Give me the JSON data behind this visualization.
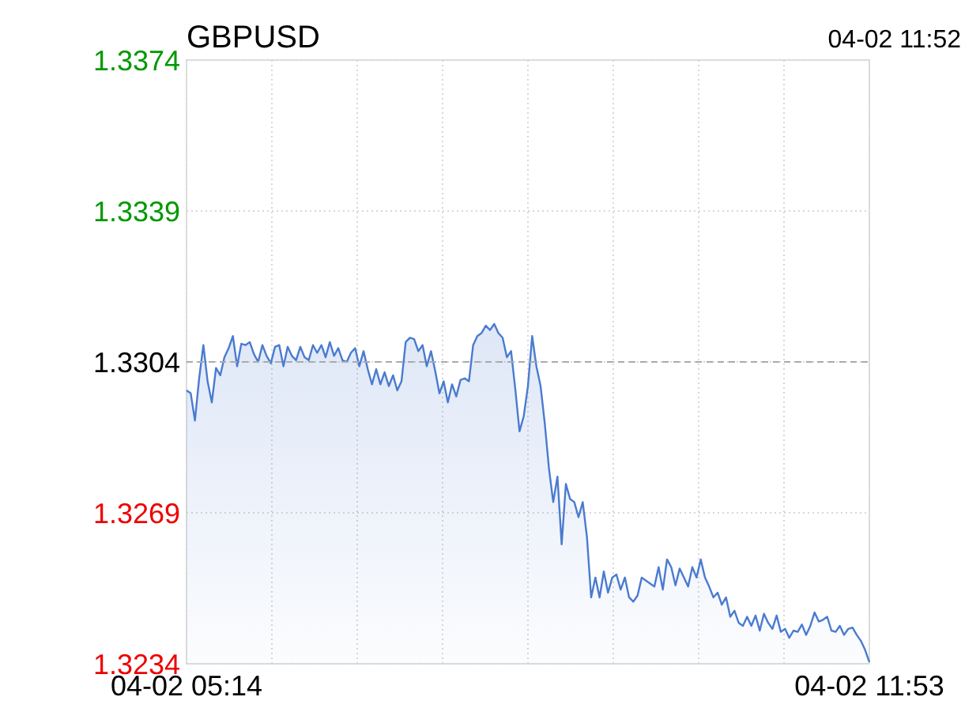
{
  "chart_data": {
    "type": "area",
    "title": "GBPUSD",
    "annotations": [
      "04-02 11:52"
    ],
    "categories": [
      "04-02 05:14",
      null,
      null,
      null,
      null,
      null,
      null,
      null,
      null,
      null,
      null,
      null,
      null,
      null,
      null,
      null,
      null,
      null,
      null,
      null,
      null,
      null,
      null,
      null,
      null,
      null,
      null,
      null,
      null,
      null,
      null,
      null,
      null,
      null,
      null,
      null,
      null,
      null,
      null,
      null,
      null,
      null,
      null,
      null,
      null,
      null,
      null,
      null,
      null,
      null,
      null,
      null,
      null,
      null,
      null,
      null,
      null,
      null,
      null,
      null,
      null,
      null,
      null,
      null,
      null,
      null,
      null,
      null,
      null,
      null,
      null,
      null,
      null,
      null,
      null,
      null,
      null,
      null,
      null,
      null,
      null,
      null,
      null,
      null,
      null,
      null,
      null,
      null,
      null,
      null,
      null,
      null,
      null,
      null,
      null,
      null,
      null,
      null,
      null,
      null,
      null,
      null,
      null,
      null,
      null,
      null,
      null,
      null,
      null,
      null,
      null,
      null,
      null,
      null,
      null,
      null,
      null,
      null,
      null,
      null,
      null,
      null,
      null,
      null,
      null,
      null,
      null,
      null,
      null,
      null,
      null,
      null,
      null,
      null,
      null,
      null,
      null,
      null,
      null,
      null,
      null,
      null,
      null,
      null,
      null,
      null,
      null,
      null,
      null,
      null,
      null,
      null,
      null,
      null,
      null,
      null,
      null,
      null,
      null,
      null,
      null,
      null,
      "04-02 11:53"
    ],
    "ylim": [
      1.3234,
      1.3374
    ],
    "yticks": [
      1.3234,
      1.3269,
      1.3304,
      1.3339,
      1.3374
    ],
    "grid": true,
    "ref_lines": [
      {
        "axis": "y",
        "value": 1.3304,
        "color": "#aaaaaa",
        "line_style": "dashed"
      }
    ],
    "series": [
      {
        "color": "#4a7bd0",
        "values": [
          1.32974,
          1.32967,
          1.32904,
          1.33002,
          1.33079,
          1.32995,
          1.32946,
          1.33026,
          1.33009,
          1.33051,
          1.33072,
          1.331,
          1.3303,
          1.33082,
          1.33079,
          1.33086,
          1.33058,
          1.3304,
          1.33079,
          1.33054,
          1.33037,
          1.33075,
          1.33079,
          1.3303,
          1.33075,
          1.33054,
          1.33044,
          1.33075,
          1.33051,
          1.33044,
          1.33079,
          1.33061,
          1.33079,
          1.33051,
          1.33086,
          1.33054,
          1.33072,
          1.33044,
          1.3304,
          1.33061,
          1.33072,
          1.3303,
          1.33065,
          1.33023,
          1.32988,
          1.33023,
          1.32988,
          1.33016,
          1.32984,
          1.33009,
          1.32974,
          1.32995,
          1.33086,
          1.33096,
          1.33093,
          1.33065,
          1.33079,
          1.3303,
          1.33065,
          1.33019,
          1.32967,
          1.32995,
          1.32946,
          1.32988,
          1.3296,
          1.32998,
          1.33002,
          1.32995,
          1.33079,
          1.331,
          1.33107,
          1.33124,
          1.33114,
          1.33128,
          1.33107,
          1.33096,
          1.33051,
          1.33065,
          1.32977,
          1.32879,
          1.32914,
          1.32984,
          1.331,
          1.3303,
          1.32984,
          1.32897,
          1.32792,
          1.32715,
          1.32774,
          1.32617,
          1.32757,
          1.32722,
          1.32715,
          1.3268,
          1.32715,
          1.32634,
          1.32494,
          1.3254,
          1.32494,
          1.32554,
          1.32505,
          1.3254,
          1.32547,
          1.32512,
          1.3254,
          1.32494,
          1.32484,
          1.32498,
          1.3254,
          1.32533,
          1.32526,
          1.32519,
          1.32564,
          1.32512,
          1.32582,
          1.32564,
          1.32522,
          1.32561,
          1.3254,
          1.32519,
          1.32564,
          1.3254,
          1.32582,
          1.3254,
          1.32519,
          1.32494,
          1.32505,
          1.32477,
          1.32494,
          1.32449,
          1.32463,
          1.32435,
          1.32428,
          1.32449,
          1.32428,
          1.32452,
          1.32417,
          1.32456,
          1.32435,
          1.32421,
          1.32452,
          1.32414,
          1.32421,
          1.324,
          1.32417,
          1.32414,
          1.32431,
          1.32407,
          1.32428,
          1.32459,
          1.32438,
          1.32442,
          1.32449,
          1.32417,
          1.32414,
          1.32428,
          1.32407,
          1.32421,
          1.32424,
          1.32407,
          1.32393,
          1.32372,
          1.32344
        ]
      }
    ]
  }
}
